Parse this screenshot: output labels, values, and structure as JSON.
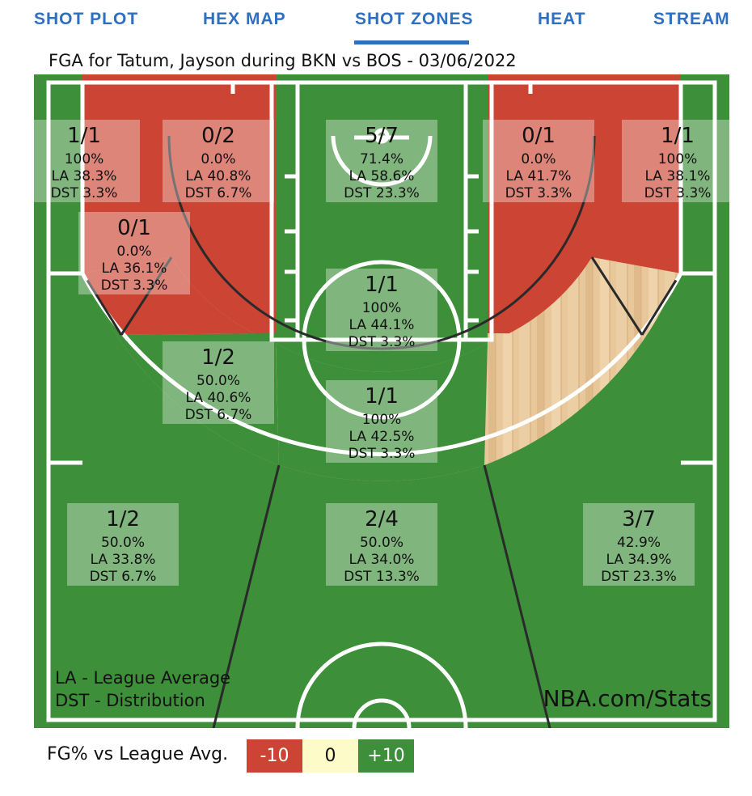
{
  "tabs": [
    "SHOT PLOT",
    "HEX MAP",
    "SHOT ZONES",
    "HEAT",
    "STREAM"
  ],
  "active_tab": "SHOT ZONES",
  "colors": {
    "tab_blue": "#2f6fc0",
    "below_avg": "#cc4433",
    "average": "#fdfbc8",
    "above_avg": "#3d8f3a"
  },
  "chart_data": {
    "type": "shot-zone-map",
    "title": "FGA for Tatum, Jayson during BKN vs BOS - 03/06/2022",
    "zones": [
      {
        "name": "Left Corner 3",
        "fg": "1/1",
        "pct": "100%",
        "la": "LA 38.3%",
        "dst": "DST 3.3%",
        "rating": "above"
      },
      {
        "name": "Left Baseline Mid-Range",
        "fg": "0/2",
        "pct": "0.0%",
        "la": "LA 40.8%",
        "dst": "DST 6.7%",
        "rating": "below"
      },
      {
        "name": "Restricted Area",
        "fg": "5/7",
        "pct": "71.4%",
        "la": "LA 58.6%",
        "dst": "DST 23.3%",
        "rating": "above"
      },
      {
        "name": "Right Baseline Mid-Range",
        "fg": "0/1",
        "pct": "0.0%",
        "la": "LA 41.7%",
        "dst": "DST 3.3%",
        "rating": "below"
      },
      {
        "name": "Right Corner 3",
        "fg": "1/1",
        "pct": "100%",
        "la": "LA 38.1%",
        "dst": "DST 3.3%",
        "rating": "above"
      },
      {
        "name": "Left Wing Mid-Range",
        "fg": "0/1",
        "pct": "0.0%",
        "la": "LA 36.1%",
        "dst": "DST 3.3%",
        "rating": "below"
      },
      {
        "name": "Paint (Non-RA)",
        "fg": "1/1",
        "pct": "100%",
        "la": "LA 44.1%",
        "dst": "DST 3.3%",
        "rating": "above"
      },
      {
        "name": "Left Elbow Mid-Range",
        "fg": "1/2",
        "pct": "50.0%",
        "la": "LA 40.6%",
        "dst": "DST 6.7%",
        "rating": "above"
      },
      {
        "name": "Top of Key Mid-Range",
        "fg": "1/1",
        "pct": "100%",
        "la": "LA 42.5%",
        "dst": "DST 3.3%",
        "rating": "above"
      },
      {
        "name": "Left Wing 3",
        "fg": "1/2",
        "pct": "50.0%",
        "la": "LA 33.8%",
        "dst": "DST 6.7%",
        "rating": "above"
      },
      {
        "name": "Top of Key 3",
        "fg": "2/4",
        "pct": "50.0%",
        "la": "LA 34.0%",
        "dst": "DST 13.3%",
        "rating": "above"
      },
      {
        "name": "Right Wing 3",
        "fg": "3/7",
        "pct": "42.9%",
        "la": "LA 34.9%",
        "dst": "DST 23.3%",
        "rating": "above"
      }
    ],
    "unattempted_zones": [
      "Right Wing Mid-Range",
      "Right Elbow Mid-Range"
    ],
    "notes": [
      "LA - League Average",
      "DST - Distribution"
    ],
    "watermark": "NBA.com/Stats",
    "legend": {
      "label": "FG% vs League Avg.",
      "low": "-10",
      "mid": "0",
      "high": "+10"
    }
  }
}
